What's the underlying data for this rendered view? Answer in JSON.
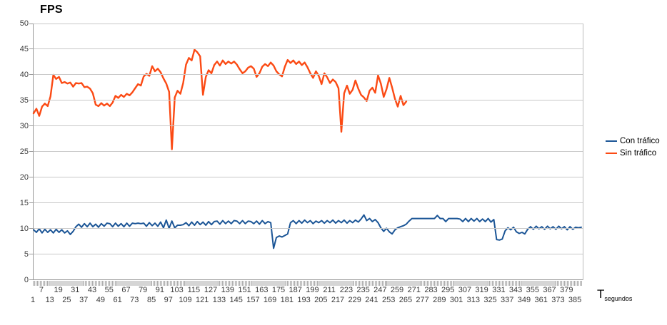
{
  "chart": {
    "title": "FPS",
    "colors": {
      "con_trafico": "#1b5596",
      "sin_trafico": "#fb4a14",
      "gridline": "#c9c9c9",
      "axis": "#9a9a9a"
    }
  },
  "chart_data": {
    "type": "line",
    "title": "FPS",
    "ylabel": "FPS",
    "xlabel": "T segundos",
    "xlabel_main": "T",
    "xlabel_sub": "segundos",
    "ylim": [
      0,
      50
    ],
    "xlim": [
      1,
      390
    ],
    "grid": true,
    "legend_position": "right",
    "y_ticks": [
      0,
      5,
      10,
      15,
      20,
      25,
      30,
      35,
      40,
      45,
      50
    ],
    "x_ticks_upper_row": [
      7,
      19,
      31,
      43,
      55,
      67,
      79,
      91,
      103,
      115,
      127,
      139,
      151,
      163,
      175,
      187,
      199,
      211,
      223,
      235,
      247,
      259,
      271,
      283,
      295,
      307,
      319,
      331,
      343,
      355,
      367,
      379
    ],
    "x_ticks_lower_row": [
      1,
      13,
      25,
      37,
      49,
      61,
      73,
      85,
      97,
      109,
      121,
      133,
      145,
      157,
      169,
      181,
      193,
      205,
      217,
      229,
      241,
      253,
      265,
      277,
      289,
      301,
      313,
      325,
      337,
      349,
      361,
      373,
      385
    ],
    "series": [
      {
        "name": "Con tráfico",
        "color": "#1b5596",
        "x_start": 1,
        "x_step": 2,
        "values": [
          9.8,
          9.3,
          10,
          9.2,
          9.9,
          9.3,
          9.8,
          9.2,
          9.9,
          9.3,
          9.8,
          9.2,
          9.6,
          8.9,
          9.5,
          10.4,
          10.9,
          10.3,
          11,
          10.4,
          11.1,
          10.4,
          10.9,
          10.3,
          11,
          10.5,
          11.1,
          11,
          10.4,
          11.1,
          10.5,
          11,
          10.4,
          11.1,
          10.5,
          11.1,
          11,
          11.1,
          11,
          11.1,
          10.5,
          11.2,
          10.6,
          11.1,
          10.5,
          11.3,
          10.2,
          11.7,
          10.1,
          11.5,
          10.2,
          10.7,
          10.7,
          10.8,
          11.2,
          10.6,
          11.3,
          10.7,
          11.4,
          10.8,
          11.3,
          10.7,
          11.4,
          10.8,
          11.4,
          11.5,
          10.9,
          11.6,
          11,
          11.5,
          11,
          11.6,
          11.5,
          11,
          11.6,
          11,
          11.5,
          11.4,
          11,
          11.5,
          10.9,
          11.6,
          11,
          11.4,
          11.2,
          6.2,
          8.3,
          8.6,
          8.4,
          8.7,
          9,
          11.2,
          11.6,
          11,
          11.6,
          11.1,
          11.7,
          11.2,
          11.6,
          11,
          11.5,
          11.2,
          11.6,
          11.1,
          11.6,
          11.2,
          11.7,
          11.1,
          11.6,
          11.2,
          11.7,
          11.1,
          11.6,
          11.2,
          11.7,
          11.3,
          11.9,
          12.7,
          11.6,
          12,
          11.4,
          11.8,
          11.2,
          10.2,
          9.5,
          10.1,
          9.4,
          9,
          9.8,
          10.2,
          10.4,
          10.6,
          10.9,
          11.5,
          12,
          12,
          12,
          12,
          12,
          12,
          12,
          12,
          12,
          12.6,
          12,
          12,
          11.4,
          12,
          12,
          12,
          12,
          11.9,
          11.4,
          12,
          11.4,
          12,
          11.5,
          12,
          11.4,
          11.9,
          11.4,
          12,
          11.3,
          11.8,
          7.9,
          7.8,
          8,
          9.6,
          10.2,
          9.8,
          10.3,
          9.4,
          9.1,
          9.3,
          9,
          9.9,
          10.4,
          9.9,
          10.5,
          10,
          10.4,
          9.9,
          10.5,
          10,
          10.4,
          9.9,
          10.5,
          10,
          10.4,
          9.8,
          10.4,
          9.9,
          10.3,
          10.2,
          10.3
        ]
      },
      {
        "name": "Sin tráfico",
        "color": "#fb4a14",
        "x_start": 1,
        "x_step": 2,
        "values": [
          32.5,
          33.4,
          32,
          33.8,
          34.4,
          33.9,
          35.8,
          40,
          39.2,
          39.6,
          38.4,
          38.6,
          38.3,
          38.5,
          37.7,
          38.4,
          38.3,
          38.4,
          37.6,
          37.7,
          37.3,
          36.4,
          34.2,
          33.9,
          34.5,
          34,
          34.4,
          33.9,
          34.6,
          35.9,
          35.5,
          36.1,
          35.7,
          36.3,
          36,
          36.6,
          37.4,
          38.2,
          37.9,
          39.7,
          40.2,
          39.8,
          41.7,
          40.7,
          41.2,
          40.5,
          39.3,
          38.3,
          36.7,
          25.5,
          35.6,
          36.9,
          36.3,
          38.4,
          42,
          43.3,
          42.8,
          44.9,
          44.4,
          43.6,
          36.1,
          39.6,
          40.9,
          40.3,
          41.9,
          42.6,
          41.8,
          42.8,
          42.1,
          42.6,
          42.2,
          42.6,
          42,
          41.1,
          40.3,
          40.7,
          41.4,
          41.7,
          41.2,
          39.6,
          40.3,
          41.6,
          42.1,
          41.7,
          42.4,
          41.8,
          40.7,
          40.1,
          39.7,
          41.6,
          42.9,
          42.3,
          42.8,
          42.1,
          42.6,
          41.9,
          42.4,
          41.5,
          40.3,
          39.4,
          40.7,
          39.8,
          38.2,
          40.3,
          39.5,
          38.4,
          39.1,
          38.6,
          37.4,
          28.9,
          36.4,
          37.9,
          36.3,
          37.1,
          38.9,
          37.3,
          36.1,
          35.6,
          34.9,
          36.9,
          37.5,
          36.5,
          39.9,
          38.3,
          35.7,
          37.2,
          39.4,
          37.5,
          35.3,
          33.8,
          35.9,
          34.1,
          34.8
        ]
      }
    ]
  }
}
